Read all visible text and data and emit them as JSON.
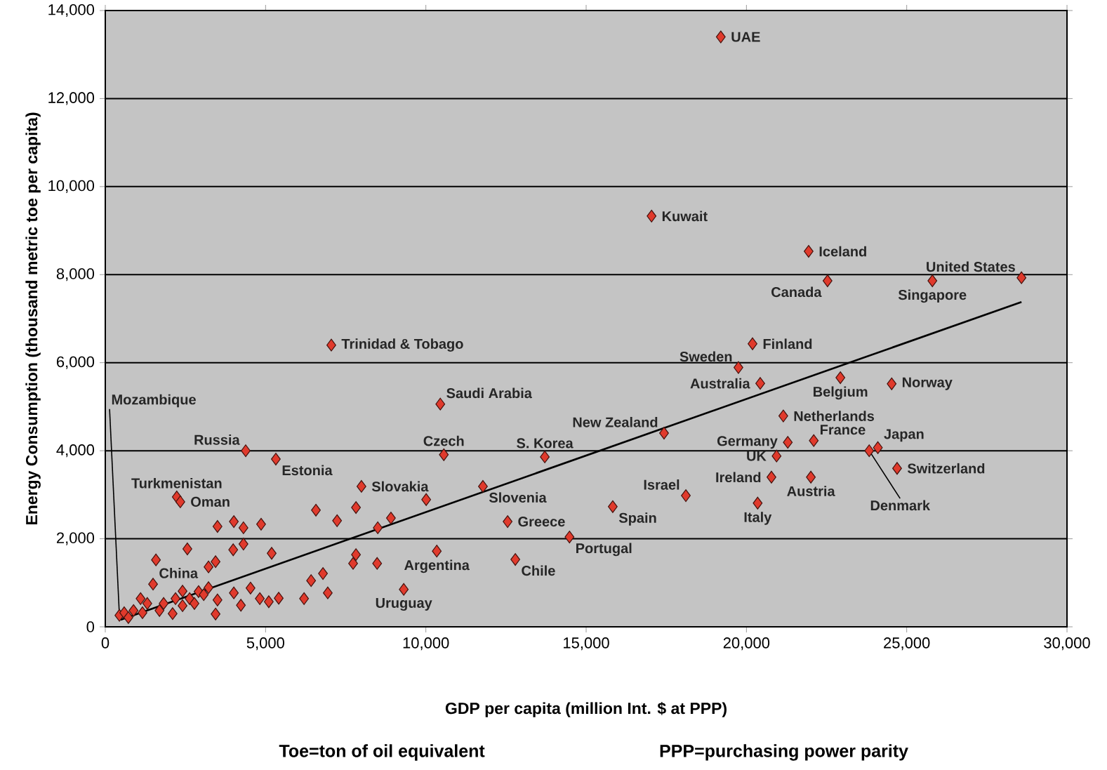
{
  "chart_data": {
    "type": "scatter",
    "xlabel": "GDP per capita (million Int. $ at PPP)",
    "ylabel": "Energy Consumption (thousand metric toe per capita)",
    "xlim": [
      0,
      30000
    ],
    "ylim": [
      0,
      14000
    ],
    "xticks": [
      0,
      {
        "value": 5000,
        "label": "5,000"
      },
      {
        "value": 10000,
        "label": "10,000"
      },
      {
        "value": 15000,
        "label": "15,000"
      },
      {
        "value": 20000,
        "label": "20,000"
      },
      {
        "value": 25000,
        "label": "25,000"
      },
      {
        "value": 30000,
        "label": "30,000"
      }
    ],
    "yticks": [
      0,
      {
        "value": 2000,
        "label": "2,000"
      },
      {
        "value": 4000,
        "label": "4,000"
      },
      {
        "value": 6000,
        "label": "6,000"
      },
      {
        "value": 8000,
        "label": "8,000"
      },
      {
        "value": 10000,
        "label": "10,000"
      },
      {
        "value": 12000,
        "label": "12,000"
      },
      {
        "value": 14000,
        "label": "14,000"
      }
    ],
    "grid": "y",
    "marker": "diamond",
    "series": [
      {
        "color": "#e03a2c",
        "x": [
          19200,
          17040,
          21940,
          22530,
          25800,
          28580,
          7050,
          20190,
          19750,
          20430,
          22930,
          24530,
          10450,
          21150,
          17430,
          21290,
          22100,
          24100,
          23830,
          20940,
          24700,
          20780,
          22010,
          18110,
          20350,
          15830,
          4380,
          5320,
          10560,
          13710,
          7990,
          11780,
          12550,
          14480,
          10340,
          12790,
          9310,
          2230,
          2340,
          1490,
          440,
          6570,
          7230,
          7820,
          10010,
          8910,
          8500,
          3500,
          4010,
          4310,
          4860,
          4310,
          3990,
          2560,
          5190,
          1580,
          3440,
          3220,
          7820,
          7730,
          8480,
          6790,
          6420,
          6940,
          6200,
          4530,
          4010,
          3500,
          3440,
          4230,
          4820,
          5410,
          5100,
          2910,
          2410,
          590,
          880,
          1100,
          1310,
          1820,
          2190,
          2630,
          3070,
          3220,
          720,
          1690,
          2410,
          2780,
          1160,
          2100
        ],
        "values": [
          13400,
          9330,
          8530,
          7860,
          7860,
          7930,
          6400,
          6430,
          5890,
          5530,
          5660,
          5520,
          5060,
          4790,
          4400,
          4190,
          4230,
          4070,
          4000,
          3880,
          3600,
          3400,
          3400,
          2980,
          2810,
          2730,
          4000,
          3810,
          3910,
          3860,
          3190,
          3190,
          2390,
          2040,
          1720,
          1530,
          850,
          2950,
          2840,
          970,
          260,
          2650,
          2410,
          2710,
          2890,
          2470,
          2250,
          2280,
          2390,
          2250,
          2330,
          1880,
          1750,
          1770,
          1670,
          1520,
          1480,
          1360,
          1640,
          1440,
          1440,
          1210,
          1050,
          770,
          640,
          880,
          770,
          610,
          290,
          490,
          640,
          650,
          570,
          800,
          810,
          320,
          370,
          640,
          530,
          530,
          640,
          640,
          730,
          890,
          210,
          370,
          480,
          530,
          320,
          300
        ]
      },
      {
        "type": "line",
        "color": "#000000",
        "marker": "none",
        "x": [
          480,
          28580
        ],
        "values": [
          160,
          7380
        ]
      }
    ],
    "annotations": [
      {
        "text": "UAE",
        "x": 19200,
        "y": 13400
      },
      {
        "text": "Kuwait",
        "x": 17040,
        "y": 9330
      },
      {
        "text": "Iceland",
        "x": 21940,
        "y": 8530
      },
      {
        "text": "Canada",
        "x": 22530,
        "y": 7860
      },
      {
        "text": "Singapore",
        "x": 25800,
        "y": 7860
      },
      {
        "text": "United States",
        "x": 28580,
        "y": 7930
      },
      {
        "text": "Trinidad & Tobago",
        "x": 7050,
        "y": 6400
      },
      {
        "text": "Finland",
        "x": 20190,
        "y": 6430
      },
      {
        "text": "Sweden",
        "x": 19750,
        "y": 5890
      },
      {
        "text": "Australia",
        "x": 20430,
        "y": 5530
      },
      {
        "text": "Belgium",
        "x": 22930,
        "y": 5660
      },
      {
        "text": "Norway",
        "x": 24530,
        "y": 5520
      },
      {
        "text": "Saudi Arabia",
        "x": 10450,
        "y": 5060
      },
      {
        "text": "Netherlands",
        "x": 21150,
        "y": 4790
      },
      {
        "text": "New Zealand",
        "x": 17430,
        "y": 4400
      },
      {
        "text": "Germany",
        "x": 21290,
        "y": 4190
      },
      {
        "text": "France",
        "x": 22100,
        "y": 4230
      },
      {
        "text": "Japan",
        "x": 24100,
        "y": 4070
      },
      {
        "text": "Denmark",
        "x": 23830,
        "y": 4000
      },
      {
        "text": "UK",
        "x": 20940,
        "y": 3880
      },
      {
        "text": "Switzerland",
        "x": 24700,
        "y": 3600
      },
      {
        "text": "Ireland",
        "x": 20780,
        "y": 3400
      },
      {
        "text": "Austria",
        "x": 22010,
        "y": 3400
      },
      {
        "text": "Israel",
        "x": 18110,
        "y": 2980
      },
      {
        "text": "Italy",
        "x": 20350,
        "y": 2810
      },
      {
        "text": "Spain",
        "x": 15830,
        "y": 2730
      },
      {
        "text": "Russia",
        "x": 4380,
        "y": 4000
      },
      {
        "text": "Estonia",
        "x": 5320,
        "y": 3810
      },
      {
        "text": "Czech",
        "x": 10560,
        "y": 3910
      },
      {
        "text": "S. Korea",
        "x": 13710,
        "y": 3860
      },
      {
        "text": "Slovakia",
        "x": 7990,
        "y": 3190
      },
      {
        "text": "Slovenia",
        "x": 11780,
        "y": 3190
      },
      {
        "text": "Greece",
        "x": 12550,
        "y": 2390
      },
      {
        "text": "Portugal",
        "x": 14480,
        "y": 2040
      },
      {
        "text": "Argentina",
        "x": 10340,
        "y": 1720
      },
      {
        "text": "Chile",
        "x": 12790,
        "y": 1530
      },
      {
        "text": "Uruguay",
        "x": 9310,
        "y": 850
      },
      {
        "text": "Turkmenistan",
        "x": 2230,
        "y": 2950
      },
      {
        "text": "Oman",
        "x": 2340,
        "y": 2840
      },
      {
        "text": "China",
        "x": 1490,
        "y": 970
      },
      {
        "text": "Mozambique",
        "x": 440,
        "y": 260
      },
      "Toe=ton of oil equivalent",
      "PPP=purchasing power parity"
    ]
  }
}
